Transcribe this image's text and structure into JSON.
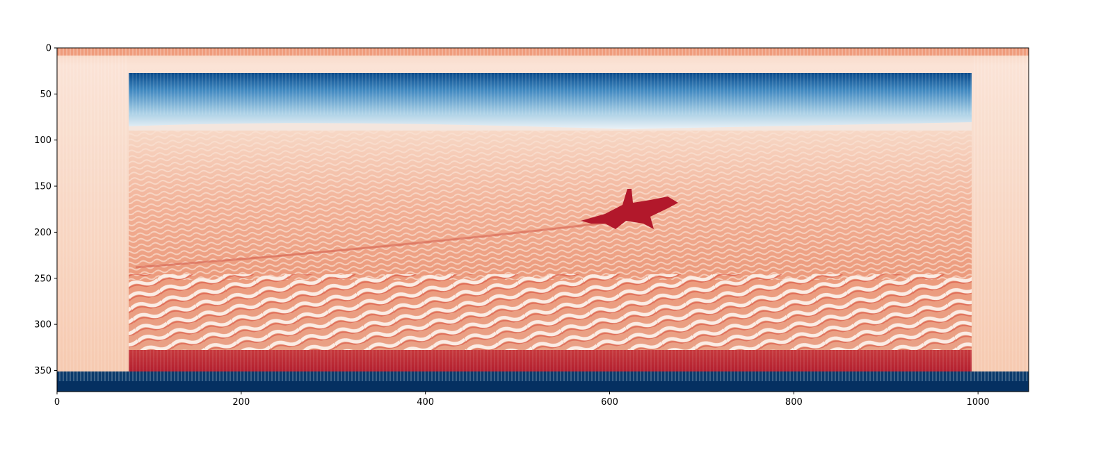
{
  "chart_data": {
    "type": "heatmap",
    "title": "",
    "xlabel": "",
    "ylabel": "",
    "colormap": "RdBu_r",
    "colors": {
      "low": "#053061",
      "mid_low": "#4393c3",
      "neutral": "#f7f7f7",
      "mid_high": "#f4a582",
      "high": "#67001f"
    },
    "image_shape": [
      373,
      1055
    ],
    "xlim": [
      0,
      1055
    ],
    "ylim": [
      373,
      0
    ],
    "y_inverted": true,
    "xticks": [
      {
        "value": 0,
        "label": "0"
      },
      {
        "value": 200,
        "label": "200"
      },
      {
        "value": 400,
        "label": "400"
      },
      {
        "value": 600,
        "label": "600"
      },
      {
        "value": 800,
        "label": "800"
      },
      {
        "value": 1000,
        "label": "1000"
      }
    ],
    "yticks": [
      {
        "value": 0,
        "label": "0"
      },
      {
        "value": 50,
        "label": "50"
      },
      {
        "value": 100,
        "label": "100"
      },
      {
        "value": 150,
        "label": "150"
      },
      {
        "value": 200,
        "label": "200"
      },
      {
        "value": 250,
        "label": "250"
      },
      {
        "value": 300,
        "label": "300"
      },
      {
        "value": 350,
        "label": "350"
      }
    ],
    "regions": [
      {
        "name": "left-border-band",
        "x": [
          0,
          78
        ],
        "y": [
          0,
          373
        ],
        "level": "light-red"
      },
      {
        "name": "right-border-band",
        "x": [
          988,
          1055
        ],
        "y": [
          0,
          373
        ],
        "level": "light-red"
      },
      {
        "name": "sky",
        "x": [
          78,
          988
        ],
        "y": [
          28,
          88
        ],
        "level": "blue"
      },
      {
        "name": "sand",
        "x": [
          78,
          988
        ],
        "y": [
          88,
          325
        ],
        "level": "red"
      },
      {
        "name": "dark-red-strip",
        "x": [
          78,
          988
        ],
        "y": [
          325,
          350
        ],
        "level": "dark-red"
      },
      {
        "name": "bottom-strip",
        "x": [
          0,
          1055
        ],
        "y": [
          350,
          373
        ],
        "level": "dark-blue"
      }
    ],
    "grid": false,
    "legend": "none"
  }
}
